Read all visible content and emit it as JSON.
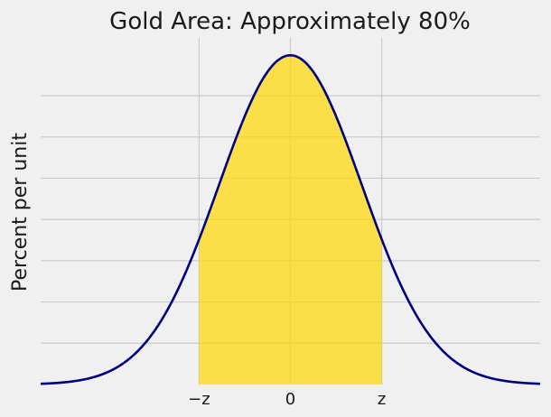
{
  "chart_data": {
    "type": "area",
    "title": "Gold Area: Approximately 80%",
    "xlabel": "",
    "ylabel": "Percent per unit",
    "x_ticks": [
      {
        "value": -1.28,
        "label": "−z"
      },
      {
        "value": 0,
        "label": "0"
      },
      {
        "value": 1.28,
        "label": "z"
      }
    ],
    "xlim": [
      -3.5,
      3.5
    ],
    "ylim": [
      0,
      0.42
    ],
    "y_gridlines": [
      0.05,
      0.1,
      0.15,
      0.2,
      0.25,
      0.3,
      0.35
    ],
    "grid": true,
    "series": [
      {
        "curve": "standard normal density",
        "mean": 0,
        "sd": 1,
        "x_range": [
          -3.5,
          3.5
        ],
        "color": "#000080"
      }
    ],
    "shaded_region": {
      "from": -1.28,
      "to": 1.28,
      "area_percent": 80,
      "color": "#ffd700"
    }
  }
}
